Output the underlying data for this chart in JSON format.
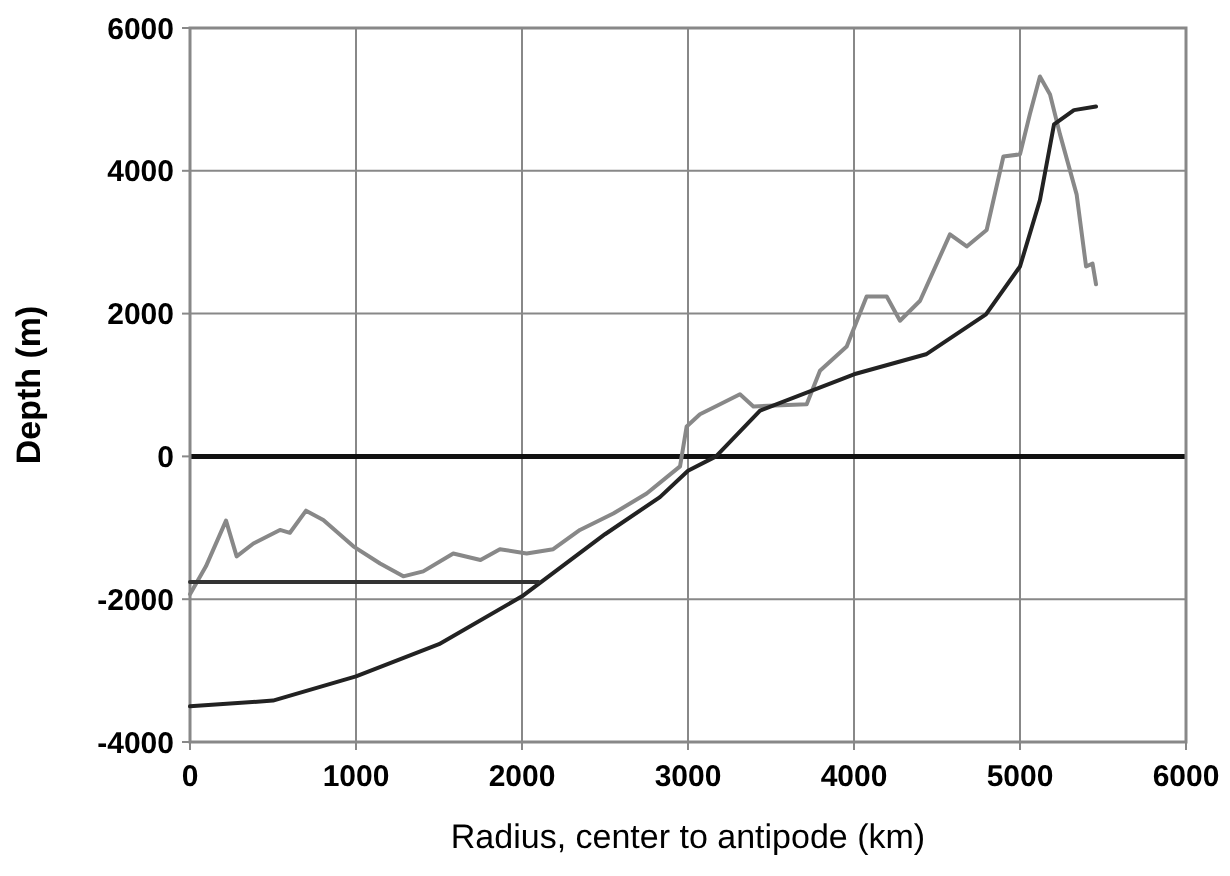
{
  "chart_data": {
    "type": "line",
    "xlabel": "Radius, center to antipode (km)",
    "ylabel": "Depth (m)",
    "xlim": [
      0,
      6000
    ],
    "xticks": [
      0,
      1000,
      2000,
      3000,
      4000,
      5000,
      6000
    ],
    "ylim": [
      -4000,
      6000
    ],
    "yticks": [
      -4000,
      -2000,
      0,
      2000,
      4000,
      6000
    ],
    "grid": true,
    "marker": "none",
    "line_style": "solid",
    "ref_lines": [
      {
        "axis": "y",
        "value": 0,
        "color": "#111111"
      }
    ],
    "series": [
      {
        "color": "#888888",
        "x": [
          0,
          96,
          217,
          281,
          382,
          542,
          602,
          699,
          803,
          984,
          1145,
          1285,
          1405,
          1586,
          1750,
          1867,
          2028,
          2188,
          2349,
          2550,
          2751,
          2952,
          2992,
          3072,
          3193,
          3313,
          3394,
          3715,
          3795,
          3956,
          4076,
          4197,
          4277,
          4398,
          4578,
          4679,
          4799,
          4900,
          5000,
          5060,
          5120,
          5181,
          5241,
          5341,
          5398,
          5437,
          5458
        ],
        "values": [
          -1930,
          -1540,
          -900,
          -1400,
          -1220,
          -1030,
          -1070,
          -760,
          -890,
          -1260,
          -1500,
          -1680,
          -1610,
          -1360,
          -1450,
          -1300,
          -1360,
          -1300,
          -1030,
          -800,
          -520,
          -140,
          420,
          590,
          730,
          870,
          700,
          730,
          1200,
          1540,
          2240,
          2240,
          1900,
          2180,
          3110,
          2940,
          3170,
          4200,
          4230,
          4800,
          5320,
          5070,
          4510,
          3670,
          2660,
          2700,
          2410
        ]
      },
      {
        "color": "#222222",
        "x": [
          0,
          500,
          1000,
          1500,
          2000,
          2500,
          2831,
          3000,
          3169,
          3434,
          4000,
          4434,
          4795,
          5000,
          5120,
          5205,
          5325,
          5458
        ],
        "values": [
          -3500,
          -3420,
          -3080,
          -2630,
          -1960,
          -1090,
          -570,
          -200,
          0,
          640,
          1150,
          1430,
          1990,
          2660,
          3590,
          4650,
          4850,
          4900
        ]
      },
      {
        "color": "#333333",
        "x": [
          0,
          2100
        ],
        "values": [
          -1760,
          -1760
        ]
      }
    ]
  }
}
